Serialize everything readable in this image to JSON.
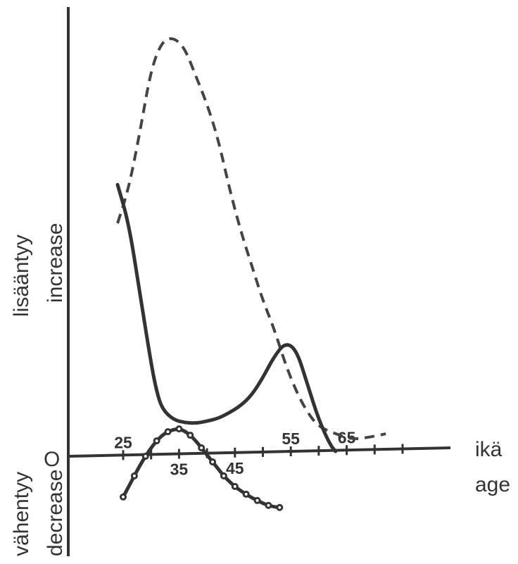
{
  "chart_data": {
    "type": "line",
    "xlabel_fi": "ikä",
    "xlabel_en": "age",
    "ylabel_up_fi": "lisääntyy",
    "ylabel_up_en": "increase",
    "ylabel_down_fi": "vähentyy",
    "ylabel_down_en": "decrease",
    "zero_label": "O",
    "xlim": [
      25,
      75
    ],
    "ylim": [
      -10,
      61
    ],
    "x_ticks": [
      25,
      30,
      35,
      40,
      45,
      50,
      55,
      60,
      65,
      70,
      75
    ],
    "x_tick_labels_above": [
      {
        "x": 25,
        "label": "25"
      },
      {
        "x": 55,
        "label": "55"
      },
      {
        "x": 65,
        "label": "65"
      }
    ],
    "x_tick_labels_below": [
      {
        "x": 35,
        "label": "35"
      },
      {
        "x": 45,
        "label": "45"
      }
    ],
    "series": [
      {
        "style": "dashed",
        "points": [
          [
            24,
            33
          ],
          [
            26,
            38
          ],
          [
            28,
            46
          ],
          [
            30,
            55
          ],
          [
            32,
            59
          ],
          [
            34,
            59.5
          ],
          [
            36,
            58
          ],
          [
            38,
            54
          ],
          [
            40,
            50
          ],
          [
            42,
            45
          ],
          [
            44,
            38
          ],
          [
            46,
            32
          ],
          [
            48,
            27
          ],
          [
            50,
            22
          ],
          [
            52,
            18
          ],
          [
            54,
            13
          ],
          [
            56,
            9
          ],
          [
            58,
            6
          ],
          [
            60,
            4
          ],
          [
            63,
            3
          ],
          [
            66,
            2.2
          ],
          [
            69,
            2.5
          ],
          [
            72,
            3
          ]
        ]
      },
      {
        "style": "solid",
        "points": [
          [
            24,
            38.5
          ],
          [
            26,
            33
          ],
          [
            28,
            23
          ],
          [
            30,
            13
          ],
          [
            31,
            9
          ],
          [
            32,
            6.5
          ],
          [
            34,
            5
          ],
          [
            36,
            4.6
          ],
          [
            38,
            4.5
          ],
          [
            40,
            4.8
          ],
          [
            42,
            5.2
          ],
          [
            44,
            6
          ],
          [
            46,
            7
          ],
          [
            48,
            8.5
          ],
          [
            50,
            11
          ],
          [
            52,
            14
          ],
          [
            54,
            16
          ],
          [
            56,
            15
          ],
          [
            58,
            10
          ],
          [
            60,
            5
          ],
          [
            62,
            1.5
          ],
          [
            63,
            0.5
          ]
        ]
      },
      {
        "style": "dotted",
        "points": [
          [
            25,
            -6
          ],
          [
            26,
            -4.5
          ],
          [
            27,
            -3
          ],
          [
            28,
            -1.5
          ],
          [
            29,
            -0.2
          ],
          [
            30,
            1
          ],
          [
            31,
            2
          ],
          [
            32,
            2.8
          ],
          [
            33,
            3.3
          ],
          [
            34,
            3.6
          ],
          [
            35,
            3.7
          ],
          [
            36,
            3.4
          ],
          [
            37,
            2.8
          ],
          [
            38,
            2
          ],
          [
            39,
            1
          ],
          [
            40,
            0
          ],
          [
            41,
            -1
          ],
          [
            42,
            -2
          ],
          [
            43,
            -3
          ],
          [
            44,
            -3.8
          ],
          [
            45,
            -4.5
          ],
          [
            46,
            -5.1
          ],
          [
            47,
            -5.6
          ],
          [
            48,
            -6.1
          ],
          [
            49,
            -6.5
          ],
          [
            50,
            -6.9
          ],
          [
            51,
            -7.2
          ],
          [
            52,
            -7.4
          ],
          [
            53,
            -7.5
          ]
        ]
      }
    ]
  }
}
